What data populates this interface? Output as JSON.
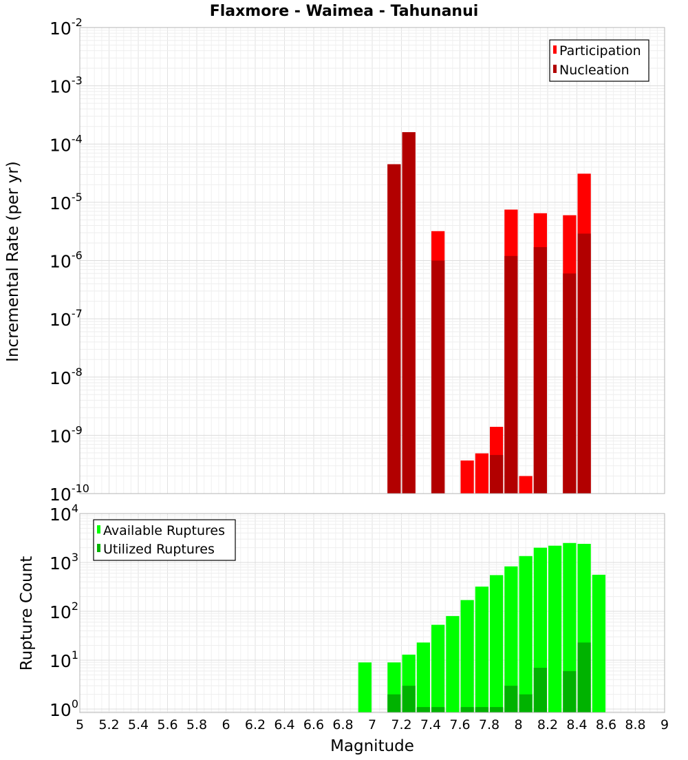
{
  "chart_data": [
    {
      "type": "bar",
      "panel": "top",
      "title": "Flaxmore - Waimea - Tahunanui",
      "ylabel": "Incremental Rate (per yr)",
      "xlim": [
        5,
        9
      ],
      "ylim_log10": [
        -10,
        -2
      ],
      "y_scale": "log",
      "yticks": [
        {
          "base": "10",
          "exp": "-2"
        },
        {
          "base": "10",
          "exp": "-3"
        },
        {
          "base": "10",
          "exp": "-4"
        },
        {
          "base": "10",
          "exp": "-5"
        },
        {
          "base": "10",
          "exp": "-6"
        },
        {
          "base": "10",
          "exp": "-7"
        },
        {
          "base": "10",
          "exp": "-8"
        },
        {
          "base": "10",
          "exp": "-9"
        },
        {
          "base": "10",
          "exp": "-10"
        }
      ],
      "legend_position": "top-right",
      "series": [
        {
          "name": "Participation",
          "color": "#ff0000",
          "points": [
            {
              "x": 7.15,
              "y": 4.5e-05
            },
            {
              "x": 7.25,
              "y": 0.00016
            },
            {
              "x": 7.45,
              "y": 3.2e-06
            },
            {
              "x": 7.65,
              "y": 3.7e-10
            },
            {
              "x": 7.75,
              "y": 4.9e-10
            },
            {
              "x": 7.85,
              "y": 1.4e-09
            },
            {
              "x": 7.95,
              "y": 7.5e-06
            },
            {
              "x": 8.05,
              "y": 2e-10
            },
            {
              "x": 8.15,
              "y": 6.5e-06
            },
            {
              "x": 8.35,
              "y": 6e-06
            },
            {
              "x": 8.45,
              "y": 3.1e-05
            }
          ]
        },
        {
          "name": "Nucleation",
          "color": "#b20000",
          "points": [
            {
              "x": 7.15,
              "y": 4.5e-05
            },
            {
              "x": 7.25,
              "y": 0.00016
            },
            {
              "x": 7.45,
              "y": 1e-06
            },
            {
              "x": 7.85,
              "y": 4.6e-10
            },
            {
              "x": 7.95,
              "y": 1.2e-06
            },
            {
              "x": 8.15,
              "y": 1.7e-06
            },
            {
              "x": 8.35,
              "y": 6e-07
            },
            {
              "x": 8.45,
              "y": 2.9e-06
            }
          ]
        }
      ]
    },
    {
      "type": "bar",
      "panel": "bottom",
      "ylabel": "Rupture Count",
      "xlabel": "Magnitude",
      "xlim": [
        5,
        9
      ],
      "ylim_log10": [
        -0.07,
        4
      ],
      "y_scale": "log",
      "yticks": [
        {
          "base": "10",
          "exp": "4",
          "log": 4
        },
        {
          "base": "10",
          "exp": "3",
          "log": 3
        },
        {
          "base": "10",
          "exp": "2",
          "log": 2
        },
        {
          "base": "10",
          "exp": "1",
          "log": 1
        },
        {
          "base": "10",
          "exp": "0",
          "log": 0
        }
      ],
      "xticks": [
        "5",
        "5.2",
        "5.4",
        "5.6",
        "5.8",
        "6",
        "6.2",
        "6.4",
        "6.6",
        "6.8",
        "7",
        "7.2",
        "7.4",
        "7.6",
        "7.8",
        "8",
        "8.2",
        "8.4",
        "8.6",
        "8.8",
        "9"
      ],
      "legend_position": "top-left",
      "series": [
        {
          "name": "Available Ruptures",
          "color": "#00ff00",
          "points": [
            {
              "x": 6.95,
              "y": 9
            },
            {
              "x": 7.15,
              "y": 9
            },
            {
              "x": 7.25,
              "y": 13
            },
            {
              "x": 7.35,
              "y": 23
            },
            {
              "x": 7.45,
              "y": 53
            },
            {
              "x": 7.55,
              "y": 80
            },
            {
              "x": 7.65,
              "y": 170
            },
            {
              "x": 7.75,
              "y": 320
            },
            {
              "x": 7.85,
              "y": 550
            },
            {
              "x": 7.95,
              "y": 830
            },
            {
              "x": 8.05,
              "y": 1350
            },
            {
              "x": 8.15,
              "y": 2000
            },
            {
              "x": 8.25,
              "y": 2200
            },
            {
              "x": 8.35,
              "y": 2500
            },
            {
              "x": 8.45,
              "y": 2400
            },
            {
              "x": 8.55,
              "y": 560
            }
          ]
        },
        {
          "name": "Utilized Ruptures",
          "color": "#00b200",
          "points": [
            {
              "x": 7.15,
              "y": 2
            },
            {
              "x": 7.25,
              "y": 3
            },
            {
              "x": 7.35,
              "y": 1.1
            },
            {
              "x": 7.45,
              "y": 1.1
            },
            {
              "x": 7.65,
              "y": 1.1
            },
            {
              "x": 7.75,
              "y": 1.1
            },
            {
              "x": 7.85,
              "y": 1.1
            },
            {
              "x": 7.95,
              "y": 3
            },
            {
              "x": 8.05,
              "y": 2
            },
            {
              "x": 8.15,
              "y": 7
            },
            {
              "x": 8.35,
              "y": 6
            },
            {
              "x": 8.45,
              "y": 23
            }
          ]
        }
      ]
    }
  ]
}
